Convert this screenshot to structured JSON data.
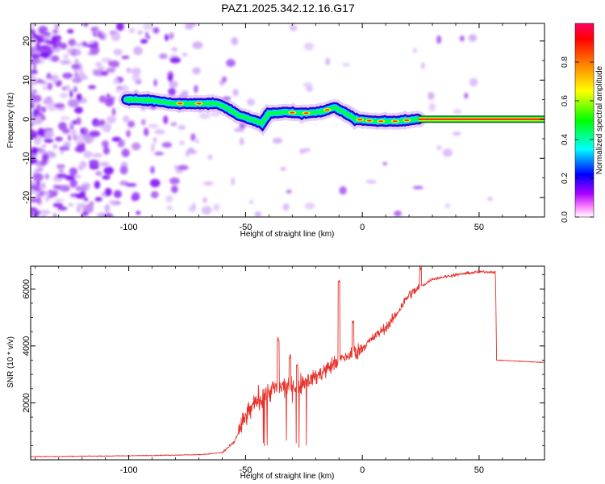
{
  "title": "PAZ1.2025.342.12.16.G17",
  "chart_data": [
    {
      "type": "heatmap",
      "xlabel": "Height of straight line (km)",
      "ylabel": "Frequency (Hz)",
      "xlim": [
        -142,
        78
      ],
      "ylim": [
        -25,
        24.5
      ],
      "xticks": [
        -100,
        -50,
        0,
        50
      ],
      "yticks": [
        -20,
        -10,
        0,
        10,
        20
      ],
      "colorbar": {
        "label": "Normalized spectral amplitude",
        "range": [
          0,
          1
        ],
        "ticks": [
          0.0,
          0.2,
          0.4,
          0.6,
          0.8
        ],
        "colors": [
          "#ffffff",
          "#ff55ff",
          "#8000ff",
          "#0000ff",
          "#00ffff",
          "#00ff00",
          "#ffff00",
          "#ff8000",
          "#ff0000",
          "#ff0066"
        ]
      },
      "ridge": [
        {
          "x": -100,
          "y": 5
        },
        {
          "x": -90,
          "y": 4.8
        },
        {
          "x": -80,
          "y": 4
        },
        {
          "x": -70,
          "y": 4
        },
        {
          "x": -62,
          "y": 4
        },
        {
          "x": -57,
          "y": 2.5
        },
        {
          "x": -53,
          "y": 1
        },
        {
          "x": -48,
          "y": 0
        },
        {
          "x": -43,
          "y": -1
        },
        {
          "x": -40,
          "y": 1.5
        },
        {
          "x": -33,
          "y": 1.8
        },
        {
          "x": -25,
          "y": 1.5
        },
        {
          "x": -17,
          "y": 2
        },
        {
          "x": -12,
          "y": 3
        },
        {
          "x": -7,
          "y": 1.5
        },
        {
          "x": -3,
          "y": 0
        },
        {
          "x": 5,
          "y": -0.5
        },
        {
          "x": 15,
          "y": -0.5
        },
        {
          "x": 24,
          "y": 0
        },
        {
          "x": 78,
          "y": 0
        }
      ]
    },
    {
      "type": "line",
      "xlabel": "Height of straight line (km)",
      "ylabel": "SNR (10 * v/v)",
      "xlim": [
        -142,
        78
      ],
      "ylim": [
        0,
        6800
      ],
      "xticks": [
        -100,
        -50,
        0,
        50
      ],
      "yticks": [
        2000,
        4000,
        6000
      ],
      "color": "#e8302a",
      "profile": [
        {
          "x": -142,
          "y": 110
        },
        {
          "x": -100,
          "y": 140
        },
        {
          "x": -70,
          "y": 180
        },
        {
          "x": -60,
          "y": 250
        },
        {
          "x": -55,
          "y": 600
        },
        {
          "x": -50,
          "y": 1500
        },
        {
          "x": -45,
          "y": 2100
        },
        {
          "x": -38,
          "y": 2500
        },
        {
          "x": -30,
          "y": 2600
        },
        {
          "x": -20,
          "y": 2900
        },
        {
          "x": -10,
          "y": 3500
        },
        {
          "x": -2,
          "y": 3800
        },
        {
          "x": 5,
          "y": 4300
        },
        {
          "x": 12,
          "y": 4800
        },
        {
          "x": 20,
          "y": 5800
        },
        {
          "x": 30,
          "y": 6350
        },
        {
          "x": 40,
          "y": 6500
        },
        {
          "x": 50,
          "y": 6600
        },
        {
          "x": 57,
          "y": 6600
        },
        {
          "x": 57.5,
          "y": 3500
        },
        {
          "x": 78,
          "y": 3420
        }
      ],
      "spikes": [
        {
          "x": -36,
          "y": 4300
        },
        {
          "x": -31,
          "y": 3700
        },
        {
          "x": -28,
          "y": 3400
        },
        {
          "x": -10,
          "y": 6400
        },
        {
          "x": -4,
          "y": 4900
        },
        {
          "x": 25,
          "y": 6800
        }
      ]
    }
  ]
}
